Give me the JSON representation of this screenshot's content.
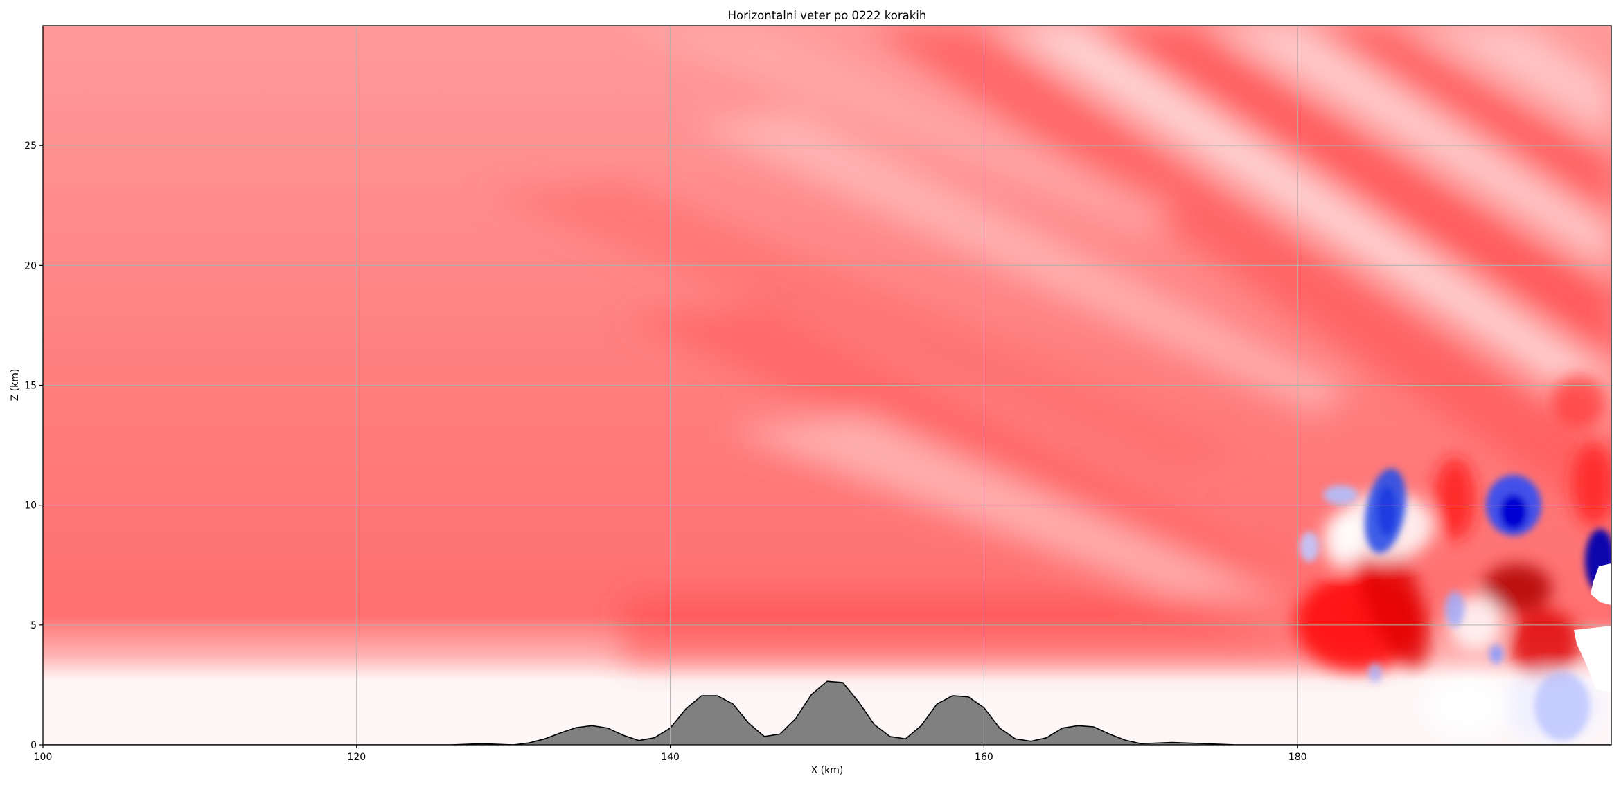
{
  "chart_data": {
    "type": "heatmap",
    "title": "Horizontalni veter po 0222 korakih",
    "xlabel": "X (km)",
    "ylabel": "Z (km)",
    "xlim": [
      100,
      200
    ],
    "ylim": [
      0,
      30
    ],
    "xticks": [
      100,
      120,
      140,
      160,
      180
    ],
    "yticks": [
      0,
      5,
      10,
      15,
      20,
      25
    ],
    "grid": true,
    "colormap": "bwr (blue negative, white zero, red positive)",
    "colors": {
      "positive": "#ff0000",
      "positive_strong": "#8b0000",
      "negative": "#0000ff",
      "zero": "#ffffff",
      "terrain_fill": "#808080",
      "terrain_edge": "#000000",
      "grid": "#b0b0b0"
    },
    "terrain": {
      "x": [
        100,
        126,
        128,
        130,
        131,
        132,
        133,
        134,
        135,
        136,
        137,
        138,
        139,
        140,
        141,
        142,
        143,
        144,
        145,
        146,
        147,
        148,
        149,
        150,
        151,
        152,
        153,
        154,
        155,
        156,
        157,
        158,
        159,
        160,
        161,
        162,
        163,
        164,
        165,
        166,
        167,
        168,
        169,
        170,
        172,
        176,
        200
      ],
      "z": [
        0,
        0,
        0.05,
        0,
        0.08,
        0.25,
        0.5,
        0.72,
        0.8,
        0.7,
        0.4,
        0.18,
        0.3,
        0.7,
        1.5,
        2.05,
        2.05,
        1.7,
        0.9,
        0.35,
        0.45,
        1.1,
        2.1,
        2.65,
        2.6,
        1.8,
        0.85,
        0.35,
        0.25,
        0.8,
        1.7,
        2.05,
        2.0,
        1.55,
        0.7,
        0.25,
        0.15,
        0.3,
        0.7,
        0.8,
        0.75,
        0.45,
        0.2,
        0.05,
        0.1,
        0,
        0
      ]
    },
    "wind_features": [
      {
        "region": "boundary layer",
        "x": [
          100,
          200
        ],
        "z": [
          0,
          2.5
        ],
        "sign": "near zero"
      },
      {
        "region": "free atmosphere",
        "x": [
          100,
          160
        ],
        "z": [
          2.5,
          30
        ],
        "sign": "positive, moderate"
      },
      {
        "region": "lee wave rays",
        "x": [
          150,
          200
        ],
        "z": [
          3,
          30
        ],
        "sign": "alternating strong/weak positive bands"
      },
      {
        "region": "negative cell",
        "x": [
          185,
          188
        ],
        "z": [
          7,
          11
        ],
        "sign": "negative"
      },
      {
        "region": "negative cell",
        "x": [
          191,
          195
        ],
        "z": [
          8,
          11
        ],
        "sign": "strongly negative"
      },
      {
        "region": "negative cell",
        "x": [
          197,
          200
        ],
        "z": [
          6,
          9
        ],
        "sign": "strongly negative"
      },
      {
        "region": "strong positive core",
        "x": [
          192,
          194
        ],
        "z": [
          5,
          7
        ],
        "sign": "strongly positive"
      }
    ]
  }
}
